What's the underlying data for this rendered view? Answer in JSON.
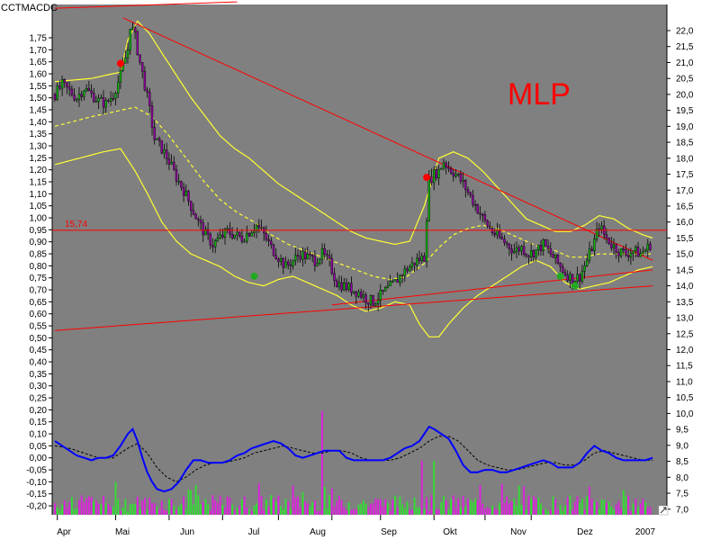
{
  "chart_data": {
    "type": "candlestick",
    "indicator_label": "CCTMACDC",
    "watermark": "MLP",
    "colors": {
      "background": "#808080",
      "candle_up": "#10b010",
      "candle_down": "#9000a0",
      "bollinger": "#ffff33",
      "trendline": "#ff0000",
      "macd": "#0000ff",
      "signal": "#000000",
      "volume_up": "#30e030",
      "volume_down": "#e020e0",
      "signal_sell": "#ff0000",
      "signal_buy": "#22aa22"
    },
    "months": [
      "Apr",
      "Mai",
      "Jun",
      "Jul",
      "Aug",
      "Sep",
      "Okt",
      "Nov",
      "Dez",
      "2007"
    ],
    "right_axis": {
      "min": 7.0,
      "max": 22.0,
      "step": 0.5,
      "ticks": [
        "22,0",
        "21,5",
        "21,0",
        "20,5",
        "20,0",
        "19,5",
        "19,0",
        "18,5",
        "18,0",
        "17,5",
        "17,0",
        "16,5",
        "16,0",
        "15,5",
        "15,0",
        "14,5",
        "14,0",
        "13,5",
        "13,0",
        "12,5",
        "12,0",
        "11,5",
        "11,0",
        "10,5",
        "10,0",
        "9,5",
        "9,0",
        "8,5",
        "8,0",
        "7,5",
        "7,0"
      ]
    },
    "left_axis": {
      "min": -0.2,
      "max": 1.75,
      "step": 0.05,
      "ticks": [
        "1,75",
        "1,70",
        "1,65",
        "1,60",
        "1,55",
        "1,50",
        "1,45",
        "1,40",
        "1,35",
        "1,30",
        "1,25",
        "1,20",
        "1,15",
        "1,10",
        "1,05",
        "1,00",
        "0,95",
        "0,90",
        "0,85",
        "0,80",
        "0,75",
        "0,70",
        "0,65",
        "0,60",
        "0,55",
        "0,50",
        "0,45",
        "0,40",
        "0,35",
        "0,30",
        "0,25",
        "0,20",
        "0,15",
        "0,10",
        "0,05",
        "0,00",
        "-0,05",
        "-0,10",
        "-0,15",
        "-0,20"
      ]
    },
    "horizontal_line": {
      "value": 15.74,
      "label": "15,74"
    },
    "price_close_trajectory": [
      [
        0,
        20.0
      ],
      [
        3,
        20.3
      ],
      [
        6,
        20.1
      ],
      [
        9,
        19.9
      ],
      [
        12,
        20.2
      ],
      [
        15,
        20.0
      ],
      [
        18,
        19.8
      ],
      [
        21,
        19.7
      ],
      [
        24,
        20.0
      ],
      [
        27,
        20.6
      ],
      [
        30,
        21.4
      ],
      [
        31,
        22.2
      ],
      [
        33,
        21.8
      ],
      [
        35,
        21.0
      ],
      [
        37,
        20.3
      ],
      [
        39,
        19.5
      ],
      [
        41,
        18.6
      ],
      [
        44,
        18.3
      ],
      [
        47,
        17.9
      ],
      [
        50,
        17.4
      ],
      [
        53,
        17.0
      ],
      [
        56,
        16.5
      ],
      [
        59,
        16.0
      ],
      [
        62,
        15.6
      ],
      [
        65,
        15.3
      ],
      [
        68,
        15.5
      ],
      [
        71,
        15.7
      ],
      [
        74,
        15.6
      ],
      [
        77,
        15.5
      ],
      [
        80,
        15.7
      ],
      [
        83,
        15.9
      ],
      [
        86,
        15.6
      ],
      [
        89,
        15.2
      ],
      [
        92,
        14.9
      ],
      [
        95,
        14.6
      ],
      [
        98,
        14.8
      ],
      [
        101,
        15.0
      ],
      [
        104,
        14.9
      ],
      [
        107,
        14.8
      ],
      [
        110,
        15.0
      ],
      [
        113,
        14.7
      ],
      [
        116,
        14.1
      ],
      [
        119,
        14.0
      ],
      [
        122,
        13.9
      ],
      [
        125,
        13.8
      ],
      [
        128,
        13.6
      ],
      [
        131,
        13.5
      ],
      [
        134,
        13.7
      ],
      [
        137,
        13.9
      ],
      [
        140,
        14.1
      ],
      [
        143,
        14.4
      ],
      [
        146,
        14.6
      ],
      [
        149,
        14.8
      ],
      [
        152,
        14.9
      ],
      [
        153,
        16.2
      ],
      [
        154,
        17.3
      ],
      [
        156,
        17.5
      ],
      [
        158,
        17.6
      ],
      [
        160,
        17.9
      ],
      [
        162,
        17.7
      ],
      [
        165,
        17.5
      ],
      [
        168,
        17.2
      ],
      [
        171,
        16.8
      ],
      [
        174,
        16.4
      ],
      [
        177,
        16.0
      ],
      [
        180,
        15.7
      ],
      [
        183,
        15.5
      ],
      [
        186,
        15.3
      ],
      [
        189,
        15.1
      ],
      [
        192,
        15.2
      ],
      [
        195,
        15.0
      ],
      [
        198,
        15.1
      ],
      [
        201,
        15.3
      ],
      [
        204,
        15.0
      ],
      [
        207,
        14.7
      ],
      [
        210,
        14.4
      ],
      [
        213,
        14.2
      ],
      [
        216,
        14.3
      ],
      [
        219,
        14.8
      ],
      [
        222,
        15.4
      ],
      [
        224,
        15.9
      ],
      [
        226,
        15.6
      ],
      [
        229,
        15.3
      ],
      [
        232,
        15.1
      ],
      [
        235,
        15.0
      ],
      [
        238,
        15.1
      ],
      [
        241,
        15.0
      ],
      [
        244,
        15.2
      ],
      [
        246,
        15.4
      ]
    ],
    "bollinger_upper": [
      [
        0,
        20.4
      ],
      [
        15,
        20.5
      ],
      [
        27,
        20.7
      ],
      [
        30,
        21.7
      ],
      [
        34,
        22.3
      ],
      [
        39,
        21.9
      ],
      [
        44,
        21.3
      ],
      [
        50,
        20.6
      ],
      [
        56,
        19.9
      ],
      [
        62,
        19.3
      ],
      [
        68,
        18.7
      ],
      [
        74,
        18.3
      ],
      [
        80,
        18.0
      ],
      [
        86,
        17.6
      ],
      [
        92,
        17.2
      ],
      [
        98,
        16.9
      ],
      [
        104,
        16.6
      ],
      [
        110,
        16.3
      ],
      [
        116,
        16.0
      ],
      [
        122,
        15.7
      ],
      [
        128,
        15.5
      ],
      [
        134,
        15.4
      ],
      [
        140,
        15.3
      ],
      [
        146,
        15.4
      ],
      [
        152,
        16.5
      ],
      [
        158,
        18.0
      ],
      [
        164,
        18.2
      ],
      [
        170,
        18.0
      ],
      [
        176,
        17.6
      ],
      [
        182,
        17.1
      ],
      [
        188,
        16.6
      ],
      [
        194,
        16.1
      ],
      [
        200,
        15.9
      ],
      [
        206,
        15.7
      ],
      [
        212,
        15.7
      ],
      [
        218,
        15.9
      ],
      [
        224,
        16.2
      ],
      [
        230,
        16.1
      ],
      [
        236,
        15.8
      ],
      [
        242,
        15.6
      ],
      [
        246,
        15.5
      ]
    ],
    "bollinger_mid": [
      [
        0,
        19.0
      ],
      [
        15,
        19.3
      ],
      [
        27,
        19.5
      ],
      [
        33,
        19.6
      ],
      [
        40,
        19.3
      ],
      [
        47,
        18.7
      ],
      [
        54,
        18.0
      ],
      [
        61,
        17.3
      ],
      [
        68,
        16.7
      ],
      [
        75,
        16.3
      ],
      [
        82,
        16.0
      ],
      [
        89,
        15.6
      ],
      [
        96,
        15.3
      ],
      [
        103,
        15.1
      ],
      [
        110,
        14.9
      ],
      [
        117,
        14.7
      ],
      [
        124,
        14.5
      ],
      [
        131,
        14.3
      ],
      [
        138,
        14.2
      ],
      [
        145,
        14.3
      ],
      [
        152,
        14.7
      ],
      [
        158,
        15.2
      ],
      [
        164,
        15.6
      ],
      [
        170,
        15.8
      ],
      [
        176,
        15.9
      ],
      [
        182,
        15.8
      ],
      [
        188,
        15.6
      ],
      [
        194,
        15.4
      ],
      [
        200,
        15.2
      ],
      [
        206,
        15.1
      ],
      [
        212,
        14.9
      ],
      [
        218,
        14.9
      ],
      [
        224,
        15.0
      ],
      [
        230,
        15.0
      ],
      [
        236,
        15.0
      ],
      [
        242,
        15.0
      ],
      [
        246,
        15.0
      ]
    ],
    "bollinger_lower": [
      [
        0,
        17.8
      ],
      [
        10,
        18.0
      ],
      [
        20,
        18.2
      ],
      [
        27,
        18.3
      ],
      [
        33,
        17.6
      ],
      [
        38,
        16.9
      ],
      [
        44,
        16.0
      ],
      [
        50,
        15.4
      ],
      [
        56,
        15.0
      ],
      [
        62,
        14.8
      ],
      [
        68,
        14.6
      ],
      [
        74,
        14.3
      ],
      [
        80,
        14.1
      ],
      [
        86,
        14.0
      ],
      [
        92,
        14.2
      ],
      [
        98,
        14.3
      ],
      [
        104,
        14.1
      ],
      [
        110,
        13.9
      ],
      [
        116,
        13.7
      ],
      [
        122,
        13.4
      ],
      [
        128,
        13.2
      ],
      [
        134,
        13.3
      ],
      [
        140,
        13.5
      ],
      [
        146,
        13.4
      ],
      [
        150,
        12.8
      ],
      [
        154,
        12.4
      ],
      [
        158,
        12.4
      ],
      [
        162,
        12.8
      ],
      [
        168,
        13.3
      ],
      [
        174,
        13.7
      ],
      [
        180,
        14.0
      ],
      [
        186,
        14.3
      ],
      [
        192,
        14.6
      ],
      [
        198,
        14.8
      ],
      [
        204,
        14.6
      ],
      [
        210,
        14.1
      ],
      [
        216,
        13.9
      ],
      [
        222,
        14.0
      ],
      [
        228,
        14.1
      ],
      [
        234,
        14.3
      ],
      [
        240,
        14.5
      ],
      [
        246,
        14.6
      ]
    ],
    "trendlines": [
      {
        "from": [
          0,
          22.7
        ],
        "to": [
          75,
          22.9
        ]
      },
      {
        "from": [
          28,
          22.4
        ],
        "to": [
          246,
          14.8
        ]
      },
      {
        "from": [
          0,
          12.6
        ],
        "to": [
          246,
          14.0
        ]
      },
      {
        "from": [
          114,
          13.4
        ],
        "to": [
          246,
          14.5
        ]
      }
    ],
    "macd": [
      [
        0,
        0.07
      ],
      [
        3,
        0.05
      ],
      [
        6,
        0.03
      ],
      [
        9,
        0.01
      ],
      [
        12,
        0.0
      ],
      [
        15,
        -0.01
      ],
      [
        18,
        0.0
      ],
      [
        21,
        0.0
      ],
      [
        24,
        0.01
      ],
      [
        27,
        0.05
      ],
      [
        30,
        0.1
      ],
      [
        32,
        0.12
      ],
      [
        34,
        0.07
      ],
      [
        36,
        0.0
      ],
      [
        38,
        -0.06
      ],
      [
        40,
        -0.1
      ],
      [
        42,
        -0.13
      ],
      [
        45,
        -0.14
      ],
      [
        48,
        -0.13
      ],
      [
        51,
        -0.1
      ],
      [
        54,
        -0.05
      ],
      [
        57,
        -0.01
      ],
      [
        60,
        -0.01
      ],
      [
        63,
        -0.02
      ],
      [
        66,
        -0.02
      ],
      [
        69,
        -0.02
      ],
      [
        72,
        -0.01
      ],
      [
        75,
        0.01
      ],
      [
        78,
        0.02
      ],
      [
        81,
        0.04
      ],
      [
        84,
        0.05
      ],
      [
        87,
        0.06
      ],
      [
        90,
        0.07
      ],
      [
        93,
        0.06
      ],
      [
        96,
        0.04
      ],
      [
        99,
        0.01
      ],
      [
        102,
        0.0
      ],
      [
        105,
        0.01
      ],
      [
        108,
        0.02
      ],
      [
        111,
        0.03
      ],
      [
        114,
        0.03
      ],
      [
        117,
        0.03
      ],
      [
        120,
        0.0
      ],
      [
        123,
        -0.01
      ],
      [
        126,
        -0.01
      ],
      [
        129,
        -0.01
      ],
      [
        132,
        -0.01
      ],
      [
        135,
        -0.01
      ],
      [
        138,
        0.0
      ],
      [
        141,
        0.02
      ],
      [
        144,
        0.04
      ],
      [
        147,
        0.05
      ],
      [
        150,
        0.07
      ],
      [
        152,
        0.1
      ],
      [
        154,
        0.13
      ],
      [
        156,
        0.12
      ],
      [
        159,
        0.1
      ],
      [
        162,
        0.08
      ],
      [
        165,
        0.03
      ],
      [
        168,
        -0.03
      ],
      [
        171,
        -0.06
      ],
      [
        174,
        -0.06
      ],
      [
        177,
        -0.05
      ],
      [
        180,
        -0.05
      ],
      [
        183,
        -0.06
      ],
      [
        186,
        -0.06
      ],
      [
        189,
        -0.05
      ],
      [
        192,
        -0.04
      ],
      [
        195,
        -0.03
      ],
      [
        198,
        -0.02
      ],
      [
        201,
        -0.01
      ],
      [
        204,
        -0.02
      ],
      [
        207,
        -0.04
      ],
      [
        210,
        -0.04
      ],
      [
        213,
        -0.04
      ],
      [
        216,
        -0.02
      ],
      [
        219,
        0.02
      ],
      [
        222,
        0.05
      ],
      [
        225,
        0.03
      ],
      [
        228,
        0.02
      ],
      [
        231,
        0.0
      ],
      [
        234,
        -0.01
      ],
      [
        237,
        -0.01
      ],
      [
        240,
        -0.01
      ],
      [
        243,
        -0.01
      ],
      [
        246,
        0.0
      ]
    ],
    "macd_signal": [
      [
        0,
        0.05
      ],
      [
        6,
        0.04
      ],
      [
        12,
        0.02
      ],
      [
        18,
        0.0
      ],
      [
        24,
        0.0
      ],
      [
        30,
        0.04
      ],
      [
        34,
        0.06
      ],
      [
        38,
        0.02
      ],
      [
        42,
        -0.04
      ],
      [
        46,
        -0.08
      ],
      [
        50,
        -0.1
      ],
      [
        54,
        -0.08
      ],
      [
        58,
        -0.05
      ],
      [
        62,
        -0.03
      ],
      [
        66,
        -0.02
      ],
      [
        70,
        -0.02
      ],
      [
        74,
        -0.01
      ],
      [
        78,
        0.0
      ],
      [
        82,
        0.02
      ],
      [
        86,
        0.03
      ],
      [
        90,
        0.04
      ],
      [
        94,
        0.05
      ],
      [
        98,
        0.04
      ],
      [
        102,
        0.03
      ],
      [
        106,
        0.02
      ],
      [
        110,
        0.02
      ],
      [
        114,
        0.03
      ],
      [
        118,
        0.03
      ],
      [
        122,
        0.02
      ],
      [
        126,
        0.0
      ],
      [
        130,
        -0.01
      ],
      [
        134,
        -0.01
      ],
      [
        138,
        -0.01
      ],
      [
        142,
        0.0
      ],
      [
        146,
        0.02
      ],
      [
        150,
        0.04
      ],
      [
        154,
        0.07
      ],
      [
        158,
        0.09
      ],
      [
        162,
        0.09
      ],
      [
        166,
        0.07
      ],
      [
        170,
        0.03
      ],
      [
        174,
        -0.01
      ],
      [
        178,
        -0.03
      ],
      [
        182,
        -0.04
      ],
      [
        186,
        -0.05
      ],
      [
        190,
        -0.05
      ],
      [
        194,
        -0.04
      ],
      [
        198,
        -0.03
      ],
      [
        202,
        -0.02
      ],
      [
        206,
        -0.02
      ],
      [
        210,
        -0.03
      ],
      [
        214,
        -0.03
      ],
      [
        218,
        -0.01
      ],
      [
        222,
        0.02
      ],
      [
        226,
        0.03
      ],
      [
        230,
        0.02
      ],
      [
        234,
        0.01
      ],
      [
        238,
        0.0
      ],
      [
        242,
        -0.01
      ],
      [
        246,
        -0.01
      ]
    ],
    "sell_signals": [
      [
        27,
        20.97
      ],
      [
        153,
        17.4
      ]
    ],
    "buy_signals": [
      [
        82,
        14.3
      ],
      [
        208,
        14.3
      ],
      [
        214,
        14.0
      ]
    ]
  }
}
